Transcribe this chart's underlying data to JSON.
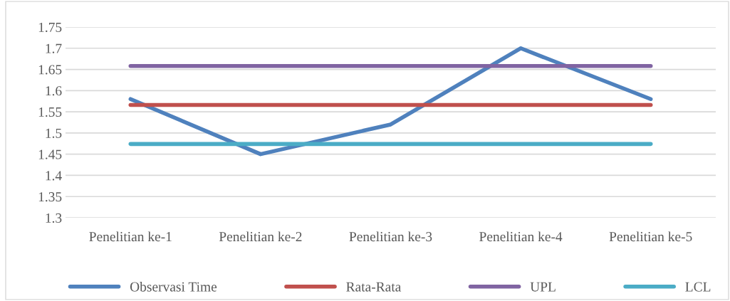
{
  "chart_data": {
    "type": "line",
    "categories": [
      "Penelitian ke-1",
      "Penelitian ke-2",
      "Penelitian ke-3",
      "Penelitian ke-4",
      "Penelitian ke-5"
    ],
    "series": [
      {
        "name": "Observasi Time",
        "color": "#4f81bd",
        "values": [
          1.58,
          1.45,
          1.52,
          1.7,
          1.58
        ]
      },
      {
        "name": "Rata-Rata",
        "color": "#c0504d",
        "values": [
          1.566,
          1.566,
          1.566,
          1.566,
          1.566
        ]
      },
      {
        "name": "UPL",
        "color": "#8064a2",
        "values": [
          1.658,
          1.658,
          1.658,
          1.658,
          1.658
        ]
      },
      {
        "name": "LCL",
        "color": "#4bacc6",
        "values": [
          1.474,
          1.474,
          1.474,
          1.474,
          1.474
        ]
      }
    ],
    "ylim": [
      1.3,
      1.75
    ],
    "yticks": [
      1.3,
      1.35,
      1.4,
      1.45,
      1.5,
      1.55,
      1.6,
      1.65,
      1.7,
      1.75
    ],
    "grid": "y",
    "legend": "bottom",
    "marker": "none",
    "line_style": "solid"
  }
}
